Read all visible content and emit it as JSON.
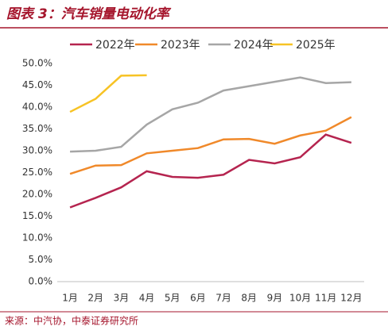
{
  "chart_data": {
    "type": "line",
    "title": "图表 3：汽车销量电动化率",
    "source": "来源：中汽协，中泰证券研究所",
    "categories": [
      "1月",
      "2月",
      "3月",
      "4月",
      "5月",
      "6月",
      "7月",
      "8月",
      "9月",
      "10月",
      "11月",
      "12月"
    ],
    "series": [
      {
        "name": "2022年",
        "color": "#b5244f",
        "values": [
          17.0,
          19.2,
          21.6,
          25.3,
          24.0,
          23.8,
          24.5,
          27.9,
          27.1,
          28.5,
          33.7,
          31.8
        ]
      },
      {
        "name": "2023年",
        "color": "#f0892a",
        "values": [
          24.7,
          26.6,
          26.7,
          29.4,
          30.0,
          30.6,
          32.6,
          32.7,
          31.6,
          33.5,
          34.6,
          37.7
        ]
      },
      {
        "name": "2024年",
        "color": "#a6a6a6",
        "values": [
          29.8,
          30.0,
          30.9,
          36.0,
          39.5,
          41.0,
          43.8,
          44.8,
          45.8,
          46.8,
          45.5,
          45.7
        ]
      },
      {
        "name": "2025年",
        "color": "#f7c325",
        "values": [
          38.9,
          41.9,
          47.2,
          47.3,
          null,
          null,
          null,
          null,
          null,
          null,
          null,
          null
        ]
      }
    ],
    "ylim": [
      0,
      50
    ],
    "yticks": [
      {
        "value": 0,
        "label": "0.0%"
      },
      {
        "value": 5,
        "label": "5.0%"
      },
      {
        "value": 10,
        "label": "10.0%"
      },
      {
        "value": 15,
        "label": "15.0%"
      },
      {
        "value": 20,
        "label": "20.0%"
      },
      {
        "value": 25,
        "label": "25.0%"
      },
      {
        "value": 30,
        "label": "30.0%"
      },
      {
        "value": 35,
        "label": "35.0%"
      },
      {
        "value": 40,
        "label": "40.0%"
      },
      {
        "value": 45,
        "label": "45.0%"
      },
      {
        "value": 50,
        "label": "50.0%"
      }
    ],
    "grid": false
  }
}
